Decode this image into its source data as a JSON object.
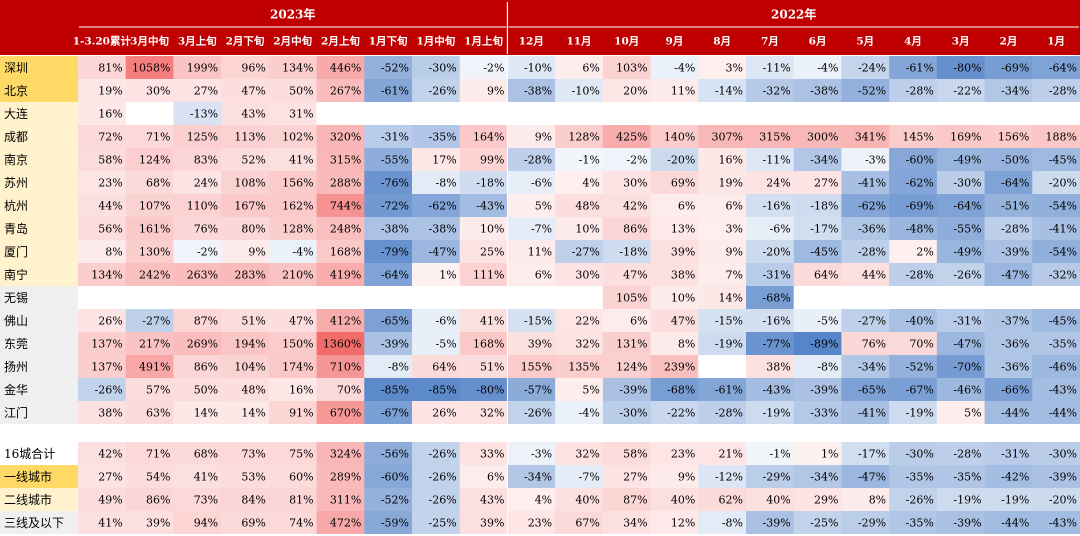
{
  "chart_data": {
    "type": "heatmap",
    "title": "",
    "unit": "%",
    "year_groups": [
      {
        "label": "2023年",
        "columns": [
          "1-3.20累计",
          "3月中旬",
          "3月上旬",
          "2月下旬",
          "2月中旬",
          "2月上旬",
          "1月下旬",
          "1月中旬",
          "1月上旬"
        ]
      },
      {
        "label": "2022年",
        "columns": [
          "12月",
          "11月",
          "10月",
          "9月",
          "8月",
          "7月",
          "6月",
          "5月",
          "4月",
          "3月",
          "2月",
          "1月"
        ]
      }
    ],
    "columns": [
      "1-3.20累计",
      "3月中旬",
      "3月上旬",
      "2月下旬",
      "2月中旬",
      "2月上旬",
      "1月下旬",
      "1月中旬",
      "1月上旬",
      "12月",
      "11月",
      "10月",
      "9月",
      "8月",
      "7月",
      "6月",
      "5月",
      "4月",
      "3月",
      "2月",
      "1月"
    ],
    "rows": [
      {
        "name": "深圳",
        "tier": "first",
        "values": [
          81,
          1058,
          199,
          96,
          134,
          446,
          -52,
          -30,
          -2,
          -10,
          6,
          103,
          -4,
          3,
          -11,
          -4,
          -24,
          -61,
          -80,
          -69,
          -64
        ]
      },
      {
        "name": "北京",
        "tier": "first",
        "values": [
          19,
          30,
          27,
          47,
          50,
          267,
          -61,
          -26,
          9,
          -38,
          -10,
          20,
          11,
          -14,
          -32,
          -38,
          -52,
          -28,
          -22,
          -34,
          -28
        ]
      },
      {
        "name": "大连",
        "tier": "second",
        "values": [
          16,
          null,
          -13,
          43,
          31,
          null,
          null,
          null,
          null,
          null,
          null,
          null,
          null,
          null,
          null,
          null,
          null,
          null,
          null,
          null,
          null
        ]
      },
      {
        "name": "成都",
        "tier": "second",
        "values": [
          72,
          71,
          125,
          113,
          102,
          320,
          -31,
          -35,
          164,
          9,
          128,
          425,
          140,
          307,
          315,
          300,
          341,
          145,
          169,
          156,
          188
        ]
      },
      {
        "name": "南京",
        "tier": "second",
        "values": [
          58,
          124,
          83,
          52,
          41,
          315,
          -55,
          17,
          99,
          -28,
          -1,
          -2,
          -20,
          16,
          -11,
          -34,
          -3,
          -60,
          -49,
          -50,
          -45
        ]
      },
      {
        "name": "苏州",
        "tier": "second",
        "values": [
          23,
          68,
          24,
          108,
          156,
          288,
          -76,
          -8,
          -18,
          -6,
          4,
          30,
          69,
          19,
          24,
          27,
          -41,
          -62,
          -30,
          -64,
          -20
        ]
      },
      {
        "name": "杭州",
        "tier": "second",
        "values": [
          44,
          107,
          110,
          167,
          162,
          744,
          -72,
          -62,
          -43,
          5,
          48,
          42,
          6,
          6,
          -16,
          -18,
          -62,
          -69,
          -64,
          -51,
          -54
        ]
      },
      {
        "name": "青岛",
        "tier": "second",
        "values": [
          56,
          161,
          76,
          80,
          128,
          248,
          -38,
          -38,
          10,
          -7,
          10,
          86,
          13,
          3,
          -6,
          -17,
          -36,
          -48,
          -55,
          -28,
          -41
        ]
      },
      {
        "name": "厦门",
        "tier": "second",
        "values": [
          8,
          130,
          -2,
          9,
          -4,
          168,
          -79,
          -47,
          25,
          11,
          -27,
          -18,
          39,
          9,
          -20,
          -45,
          -28,
          2,
          -49,
          -39,
          -54
        ]
      },
      {
        "name": "南宁",
        "tier": "second",
        "values": [
          134,
          242,
          263,
          283,
          210,
          419,
          -64,
          1,
          111,
          6,
          30,
          47,
          38,
          7,
          -31,
          64,
          44,
          -28,
          -26,
          -47,
          -32
        ]
      },
      {
        "name": "无锡",
        "tier": "third",
        "values": [
          null,
          null,
          null,
          null,
          null,
          null,
          null,
          null,
          null,
          null,
          null,
          105,
          10,
          14,
          -68,
          null,
          null,
          null,
          null,
          null,
          null
        ]
      },
      {
        "name": "佛山",
        "tier": "third",
        "values": [
          26,
          -27,
          87,
          51,
          47,
          412,
          -65,
          -6,
          41,
          -15,
          22,
          6,
          47,
          -15,
          -16,
          -5,
          -27,
          -40,
          -31,
          -37,
          -45
        ]
      },
      {
        "name": "东莞",
        "tier": "third",
        "values": [
          137,
          217,
          269,
          194,
          150,
          1360,
          -39,
          -5,
          168,
          39,
          32,
          131,
          8,
          -19,
          -77,
          -89,
          76,
          70,
          -47,
          -36,
          -35
        ]
      },
      {
        "name": "扬州",
        "tier": "third",
        "values": [
          137,
          491,
          86,
          104,
          174,
          710,
          -8,
          64,
          51,
          155,
          135,
          124,
          239,
          null,
          38,
          -8,
          -34,
          -52,
          -70,
          -36,
          -46
        ]
      },
      {
        "name": "金华",
        "tier": "third",
        "values": [
          -26,
          57,
          50,
          48,
          16,
          70,
          -85,
          -85,
          -80,
          -57,
          5,
          -39,
          -68,
          -61,
          -43,
          -39,
          -65,
          -67,
          -46,
          -66,
          -43
        ]
      },
      {
        "name": "江门",
        "tier": "third",
        "values": [
          38,
          63,
          14,
          14,
          91,
          670,
          -67,
          26,
          32,
          -26,
          -4,
          -30,
          -22,
          -28,
          -19,
          -33,
          -41,
          -19,
          5,
          -44,
          -44
        ]
      },
      {
        "name": "16城合计",
        "tier": "summary",
        "values": [
          42,
          71,
          68,
          73,
          75,
          324,
          -56,
          -26,
          33,
          -3,
          32,
          58,
          23,
          21,
          -1,
          1,
          -17,
          -30,
          -28,
          -31,
          -30
        ]
      },
      {
        "name": "一线城市",
        "tier": "first",
        "values": [
          27,
          54,
          41,
          53,
          60,
          289,
          -60,
          -26,
          6,
          -34,
          -7,
          27,
          9,
          -12,
          -29,
          -34,
          -47,
          -35,
          -35,
          -42,
          -39
        ]
      },
      {
        "name": "二线城市",
        "tier": "second",
        "values": [
          49,
          86,
          73,
          84,
          81,
          311,
          -52,
          -26,
          43,
          4,
          40,
          87,
          40,
          62,
          40,
          29,
          8,
          -26,
          -19,
          -19,
          -20
        ]
      },
      {
        "name": "三线及以下",
        "tier": "third",
        "values": [
          41,
          39,
          94,
          69,
          74,
          472,
          -59,
          -25,
          39,
          23,
          67,
          34,
          12,
          -8,
          -39,
          -25,
          -29,
          -35,
          -39,
          -44,
          -43
        ]
      }
    ],
    "colors": {
      "header_bg": "#c00000",
      "header_text": "#ffffff",
      "positive_max": "#f36a6a",
      "negative_max": "#5584c8",
      "neutral": "#ffffff",
      "tier_first": "#ffd966",
      "tier_second": "#fff2cc",
      "tier_third": "#efefef",
      "tier_summary": "#ffffff",
      "text": "#000000"
    }
  }
}
